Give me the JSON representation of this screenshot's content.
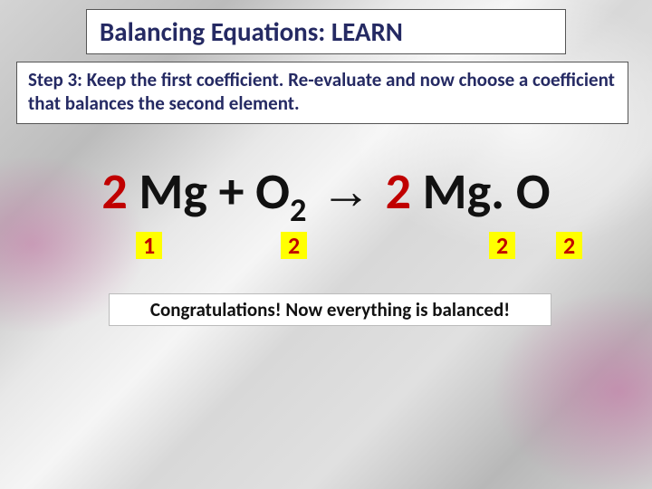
{
  "title": "Balancing Equations: LEARN",
  "step": "Step 3: Keep the first coefficient.  Re-evaluate and now choose a coefficient that balances the second element.",
  "equation": {
    "coef1": "2",
    "reactant1": "Mg",
    "plus": " + ",
    "reactant2": "O",
    "sub2": "2",
    "arrow": " → ",
    "coef2": "2",
    "product": "Mg. O"
  },
  "counts": {
    "c1": "1",
    "c2": "2",
    "c3": "2",
    "c4": "2"
  },
  "congrats": "Congratulations!  Now everything is balanced!",
  "colors": {
    "heading_text": "#252a63",
    "coef_red": "#c00000",
    "highlight_bg": "#ffff00",
    "box_bg": "#ffffff"
  }
}
